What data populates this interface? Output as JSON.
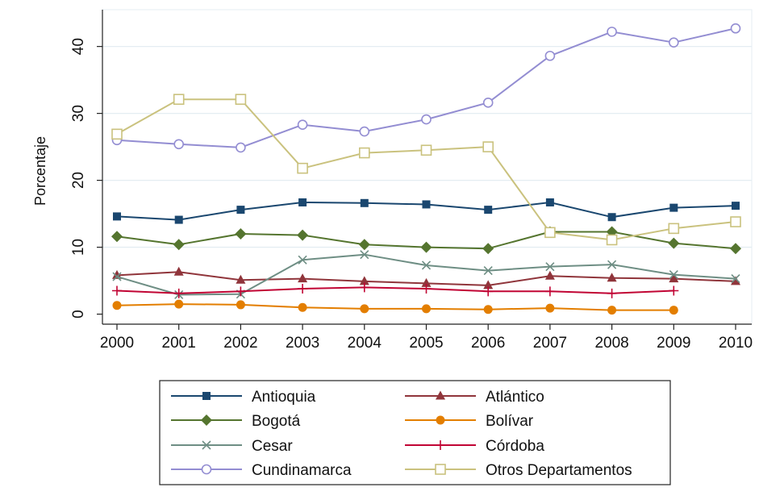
{
  "chart_data": {
    "type": "line",
    "title": "",
    "xlabel": "",
    "ylabel": "Porcentaje",
    "x": [
      2000,
      2001,
      2002,
      2003,
      2004,
      2005,
      2006,
      2007,
      2008,
      2009,
      2010
    ],
    "x_tick_labels": [
      "2000",
      "2001",
      "2002",
      "2003",
      "2004",
      "2005",
      "2006",
      "2007",
      "2008",
      "2009",
      "2010"
    ],
    "y_ticks": [
      0,
      10,
      20,
      30,
      40
    ],
    "y_tick_labels": [
      "0",
      "10",
      "20",
      "30",
      "40"
    ],
    "xlim": [
      2000,
      2010
    ],
    "ylim": [
      -1.5,
      45.5
    ],
    "grid": "horizontal",
    "legend_position": "bottom",
    "series": [
      {
        "name": "Antioquia",
        "color": "#1a476f",
        "marker": "square-filled",
        "values": [
          14.6,
          14.1,
          15.6,
          16.7,
          16.6,
          16.4,
          15.6,
          16.7,
          14.5,
          15.9,
          16.2
        ]
      },
      {
        "name": "Atlántico",
        "color": "#90353b",
        "marker": "triangle-filled",
        "values": [
          5.8,
          6.3,
          5.1,
          5.3,
          4.9,
          4.6,
          4.3,
          5.7,
          5.4,
          5.3,
          4.9
        ]
      },
      {
        "name": "Bogotá",
        "color": "#55752f",
        "marker": "diamond-filled",
        "values": [
          11.6,
          10.4,
          12.0,
          11.8,
          10.4,
          10.0,
          9.8,
          12.3,
          12.3,
          10.6,
          9.8
        ]
      },
      {
        "name": "Bolívar",
        "color": "#e37e00",
        "marker": "circle-filled",
        "values": [
          1.3,
          1.5,
          1.4,
          1.0,
          0.8,
          0.8,
          0.7,
          0.9,
          0.6,
          0.6,
          null
        ]
      },
      {
        "name": "Cesar",
        "color": "#6e8e84",
        "marker": "x",
        "values": [
          5.6,
          2.9,
          3.0,
          8.1,
          8.9,
          7.3,
          6.5,
          7.1,
          7.4,
          5.9,
          5.3
        ]
      },
      {
        "name": "Córdoba",
        "color": "#c10534",
        "marker": "plus",
        "values": [
          3.5,
          3.1,
          3.4,
          3.8,
          4.0,
          3.8,
          3.4,
          3.4,
          3.1,
          3.5,
          null
        ]
      },
      {
        "name": "Cundinamarca",
        "color": "#938dd2",
        "marker": "circle-hollow",
        "values": [
          26.0,
          25.4,
          24.9,
          28.3,
          27.3,
          29.1,
          31.6,
          38.6,
          42.2,
          40.6,
          42.7
        ]
      },
      {
        "name": "Otros Departamentos",
        "color": "#cac27e",
        "marker": "square-hollow",
        "values": [
          26.9,
          32.1,
          32.1,
          21.8,
          24.1,
          24.5,
          25.0,
          12.2,
          11.1,
          12.8,
          13.8
        ]
      }
    ]
  }
}
